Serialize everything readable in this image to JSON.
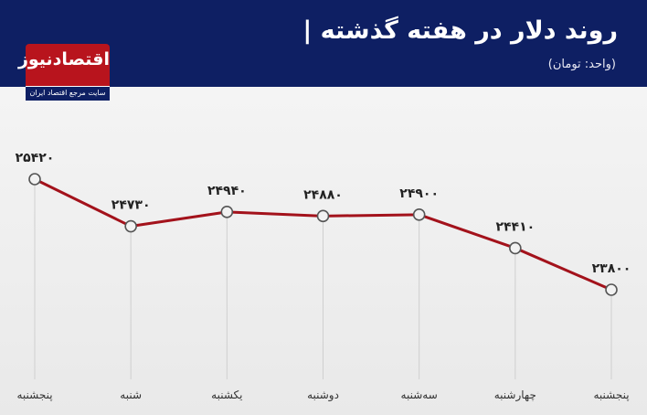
{
  "header": {
    "title": "روند دلار در هفته گذشته |",
    "unit": "(واحد: تومان)"
  },
  "logo": {
    "name": "اقتصادنیوز",
    "tagline": "سایت مرجع اقتصاد ایران"
  },
  "colors": {
    "header_bg": "#0e1f63",
    "brand_red": "#b8141d",
    "line": "#a3121b",
    "point_fill": "#f2f2f2",
    "point_stroke": "#555555",
    "label": "#222222"
  },
  "chart_data": {
    "type": "line",
    "categories": [
      "پنجشنبه",
      "شنبه",
      "یکشنبه",
      "دوشنبه",
      "سه‌شنبه",
      "چهارشنبه",
      "پنجشنبه"
    ],
    "values": [
      25420,
      24730,
      24940,
      24880,
      24900,
      24410,
      23800
    ],
    "data_labels": [
      "۲۵۴۲۰",
      "۲۴۷۳۰",
      "۲۴۹۴۰",
      "۲۴۸۸۰",
      "۲۴۹۰۰",
      "۲۴۴۱۰",
      "۲۳۸۰۰"
    ],
    "title": "روند دلار در هفته گذشته",
    "unit": "تومان",
    "grid": "vertical drop lines",
    "legend": "none"
  }
}
